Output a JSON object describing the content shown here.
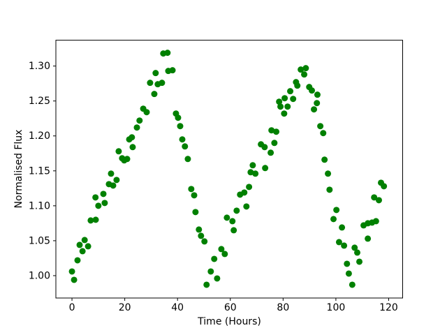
{
  "chart_data": {
    "type": "scatter",
    "title": "",
    "xlabel": "Time (Hours)",
    "ylabel": "Normalised Flux",
    "xticks": [
      0,
      20,
      40,
      60,
      80,
      100,
      120
    ],
    "yticks": [
      1.0,
      1.05,
      1.1,
      1.15,
      1.2,
      1.25,
      1.3
    ],
    "xlim": [
      -6.1,
      125.3
    ],
    "ylim": [
      0.968,
      1.337
    ],
    "grid": false,
    "legend": null,
    "marker_color": "#008000",
    "marker_radius_px": 4.5,
    "frame_color": "#000000",
    "points": [
      [
        0.0,
        1.006
      ],
      [
        0.8,
        0.994
      ],
      [
        2.1,
        1.022
      ],
      [
        2.9,
        1.044
      ],
      [
        4.0,
        1.035
      ],
      [
        4.8,
        1.051
      ],
      [
        6.1,
        1.042
      ],
      [
        7.1,
        1.079
      ],
      [
        8.9,
        1.112
      ],
      [
        9.0,
        1.08
      ],
      [
        10.0,
        1.1
      ],
      [
        11.9,
        1.117
      ],
      [
        12.4,
        1.104
      ],
      [
        14.0,
        1.131
      ],
      [
        14.8,
        1.146
      ],
      [
        15.6,
        1.129
      ],
      [
        16.9,
        1.137
      ],
      [
        17.7,
        1.178
      ],
      [
        19.0,
        1.168
      ],
      [
        19.8,
        1.165
      ],
      [
        20.9,
        1.167
      ],
      [
        21.7,
        1.195
      ],
      [
        22.7,
        1.198
      ],
      [
        23.0,
        1.184
      ],
      [
        24.6,
        1.212
      ],
      [
        25.6,
        1.222
      ],
      [
        27.0,
        1.239
      ],
      [
        28.3,
        1.234
      ],
      [
        29.6,
        1.276
      ],
      [
        31.2,
        1.26
      ],
      [
        31.7,
        1.29
      ],
      [
        32.5,
        1.274
      ],
      [
        34.1,
        1.276
      ],
      [
        34.6,
        1.318
      ],
      [
        36.2,
        1.319
      ],
      [
        36.5,
        1.293
      ],
      [
        38.1,
        1.294
      ],
      [
        39.4,
        1.232
      ],
      [
        40.2,
        1.226
      ],
      [
        41.0,
        1.214
      ],
      [
        41.8,
        1.195
      ],
      [
        42.8,
        1.185
      ],
      [
        43.9,
        1.167
      ],
      [
        45.2,
        1.124
      ],
      [
        46.3,
        1.115
      ],
      [
        46.8,
        1.091
      ],
      [
        48.1,
        1.066
      ],
      [
        48.9,
        1.057
      ],
      [
        50.2,
        1.049
      ],
      [
        51.0,
        0.987
      ],
      [
        52.6,
        1.006
      ],
      [
        53.9,
        1.024
      ],
      [
        55.0,
        0.996
      ],
      [
        56.6,
        1.038
      ],
      [
        57.9,
        1.031
      ],
      [
        58.7,
        1.083
      ],
      [
        60.8,
        1.078
      ],
      [
        61.3,
        1.065
      ],
      [
        62.4,
        1.093
      ],
      [
        63.7,
        1.116
      ],
      [
        65.3,
        1.119
      ],
      [
        66.1,
        1.099
      ],
      [
        67.1,
        1.127
      ],
      [
        67.7,
        1.148
      ],
      [
        68.5,
        1.158
      ],
      [
        69.5,
        1.146
      ],
      [
        71.6,
        1.188
      ],
      [
        73.0,
        1.184
      ],
      [
        73.2,
        1.154
      ],
      [
        75.3,
        1.176
      ],
      [
        75.6,
        1.208
      ],
      [
        76.7,
        1.19
      ],
      [
        77.4,
        1.206
      ],
      [
        78.5,
        1.249
      ],
      [
        79.0,
        1.242
      ],
      [
        80.4,
        1.232
      ],
      [
        80.6,
        1.254
      ],
      [
        81.7,
        1.242
      ],
      [
        82.7,
        1.264
      ],
      [
        83.8,
        1.253
      ],
      [
        84.9,
        1.277
      ],
      [
        85.4,
        1.272
      ],
      [
        86.7,
        1.295
      ],
      [
        88.0,
        1.288
      ],
      [
        88.6,
        1.297
      ],
      [
        89.9,
        1.27
      ],
      [
        90.9,
        1.265
      ],
      [
        91.7,
        1.238
      ],
      [
        92.8,
        1.247
      ],
      [
        93.0,
        1.259
      ],
      [
        94.1,
        1.214
      ],
      [
        95.2,
        1.204
      ],
      [
        95.7,
        1.166
      ],
      [
        97.0,
        1.146
      ],
      [
        97.6,
        1.123
      ],
      [
        99.1,
        1.081
      ],
      [
        100.2,
        1.094
      ],
      [
        101.2,
        1.048
      ],
      [
        102.3,
        1.069
      ],
      [
        103.1,
        1.043
      ],
      [
        104.2,
        1.017
      ],
      [
        104.9,
        1.003
      ],
      [
        106.2,
        0.987
      ],
      [
        107.1,
        1.04
      ],
      [
        108.1,
        1.033
      ],
      [
        108.9,
        1.02
      ],
      [
        110.5,
        1.072
      ],
      [
        112.1,
        1.075
      ],
      [
        112.1,
        1.053
      ],
      [
        113.7,
        1.076
      ],
      [
        114.5,
        1.112
      ],
      [
        115.2,
        1.078
      ],
      [
        116.3,
        1.108
      ],
      [
        117.1,
        1.133
      ],
      [
        118.2,
        1.128
      ]
    ]
  }
}
